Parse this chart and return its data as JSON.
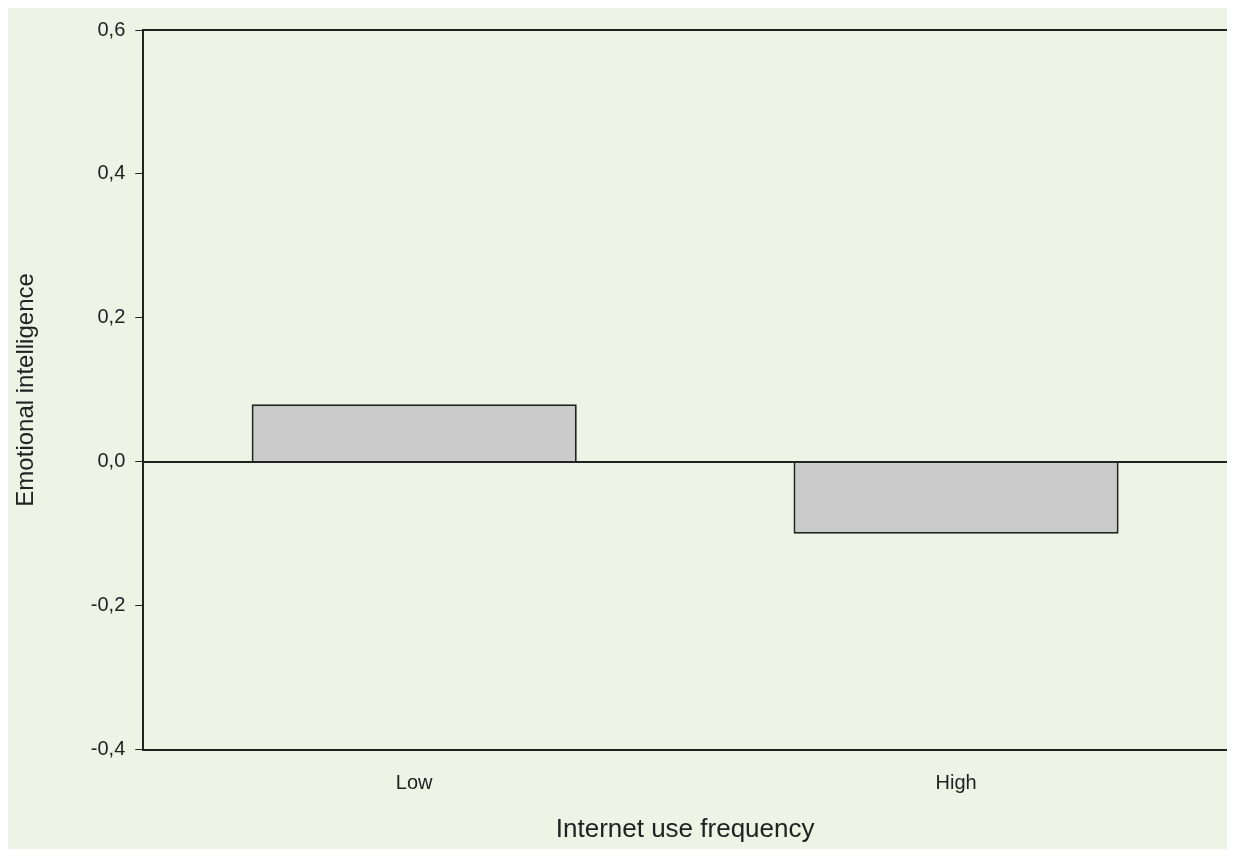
{
  "chart_data": {
    "type": "bar",
    "xlabel": "Internet use frequency",
    "ylabel": "Emotional intelligence",
    "categories": [
      "Low",
      "High"
    ],
    "values": [
      0.08,
      -0.1
    ],
    "color": "#cbcbcb",
    "ylim": [
      -0.4,
      0.6
    ],
    "yticks": [
      {
        "value": -0.4,
        "label": "-0,4"
      },
      {
        "value": -0.2,
        "label": "-0,2"
      },
      {
        "value": 0,
        "label": "0,0"
      },
      {
        "value": 0.2,
        "label": "0,2"
      },
      {
        "value": 0.4,
        "label": "0,4"
      },
      {
        "value": 0.6,
        "label": "0,6"
      }
    ],
    "ref_lines": [
      {
        "axis": "y",
        "value": 0
      }
    ],
    "grid": false,
    "legend": false
  }
}
